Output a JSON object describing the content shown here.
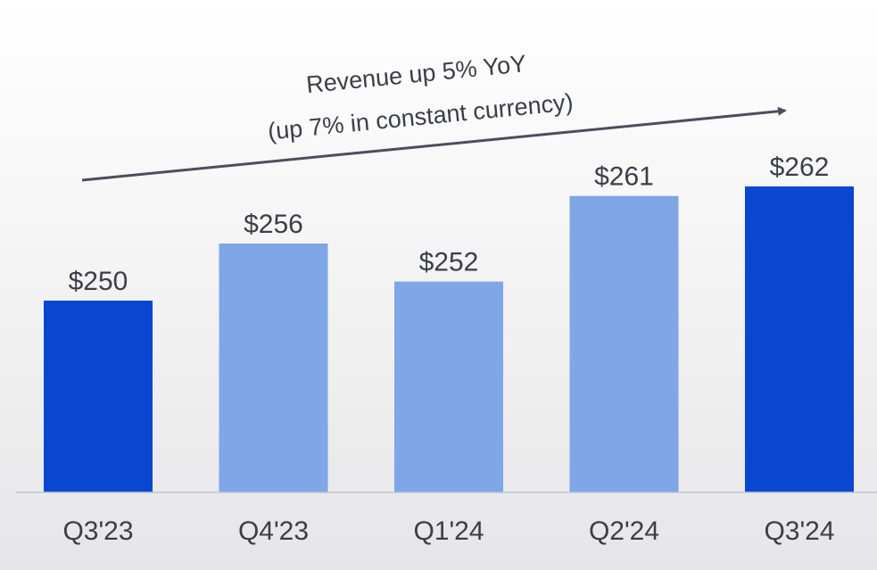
{
  "chart_data": {
    "type": "bar",
    "title": "",
    "xlabel": "",
    "ylabel": "",
    "categories": [
      "Q3'23",
      "Q4'23",
      "Q1'24",
      "Q2'24",
      "Q3'24"
    ],
    "values": [
      250,
      256,
      252,
      261,
      262
    ],
    "data_labels": [
      "$250",
      "$256",
      "$252",
      "$261",
      "$262"
    ],
    "bar_colors": [
      "#0a47d0",
      "#7fa6e6",
      "#7fa6e6",
      "#7fa6e6",
      "#0a47d0"
    ],
    "annotation": {
      "line1": "Revenue up 5% YoY",
      "line2": "(up 7% in constant currency)"
    },
    "legend": "none",
    "grid": false,
    "axis_color": "#b9c6da",
    "text_color": "#3b3e46",
    "arrow_color": "#4a4f5a"
  }
}
